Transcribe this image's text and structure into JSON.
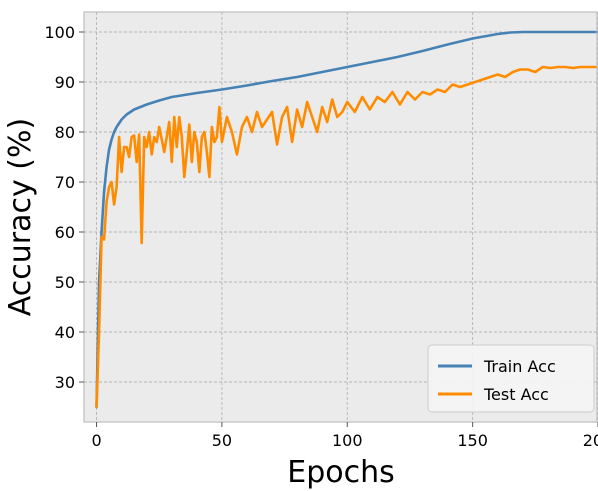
{
  "chart_data": {
    "type": "line",
    "xlabel": "Epochs",
    "ylabel": "Accuracy (%)",
    "xlim": [
      -5,
      200
    ],
    "ylim": [
      22,
      104
    ],
    "xticks": [
      0,
      50,
      100,
      150,
      200
    ],
    "yticks": [
      30,
      40,
      50,
      60,
      70,
      80,
      90,
      100
    ],
    "grid": true,
    "legend_position": "lower-right",
    "series": [
      {
        "name": "Train Acc",
        "color": "#4682b4",
        "x": [
          0,
          1,
          2,
          3,
          4,
          5,
          6,
          7,
          8,
          10,
          12,
          15,
          20,
          25,
          30,
          40,
          50,
          60,
          70,
          80,
          90,
          100,
          110,
          120,
          130,
          140,
          150,
          160,
          165,
          170,
          180,
          190,
          200
        ],
        "y": [
          25,
          50,
          60,
          68,
          73,
          76.5,
          78.5,
          80,
          81,
          82.5,
          83.5,
          84.5,
          85.5,
          86.3,
          87,
          87.8,
          88.5,
          89.3,
          90.2,
          91,
          92,
          93,
          94,
          95,
          96.2,
          97.5,
          98.7,
          99.6,
          99.9,
          100,
          100,
          100,
          100
        ]
      },
      {
        "name": "Test Acc",
        "color": "#ff8c00",
        "x": [
          0,
          1,
          2,
          3,
          4,
          5,
          6,
          7,
          8,
          9,
          10,
          11,
          12,
          13,
          14,
          15,
          16,
          17,
          18,
          19,
          20,
          21,
          22,
          23,
          24,
          25,
          26,
          27,
          28,
          29,
          30,
          31,
          32,
          33,
          34,
          35,
          36,
          37,
          38,
          39,
          40,
          41,
          42,
          43,
          44,
          45,
          46,
          47,
          48,
          49,
          50,
          52,
          54,
          56,
          58,
          60,
          62,
          64,
          66,
          68,
          70,
          72,
          74,
          76,
          78,
          80,
          82,
          84,
          86,
          88,
          90,
          92,
          94,
          96,
          98,
          100,
          103,
          106,
          109,
          112,
          115,
          118,
          121,
          124,
          127,
          130,
          133,
          136,
          139,
          142,
          145,
          148,
          151,
          154,
          157,
          160,
          163,
          166,
          169,
          172,
          175,
          178,
          181,
          184,
          187,
          190,
          193,
          196,
          199
        ],
        "y": [
          25,
          40,
          59,
          58.5,
          66,
          69,
          70,
          65.5,
          69,
          79,
          72,
          77,
          77,
          75,
          79,
          79.3,
          74,
          79.5,
          57.8,
          79,
          77,
          80,
          75.5,
          79,
          78,
          81,
          78.5,
          76,
          79,
          82,
          74,
          83,
          77,
          83,
          79,
          71,
          76,
          81.5,
          74,
          80,
          78,
          72,
          79,
          80,
          76,
          71,
          81,
          78,
          79,
          85,
          78,
          83,
          80,
          75.5,
          81,
          83,
          80,
          84,
          81,
          82.5,
          84,
          77.5,
          83,
          85,
          78,
          84.5,
          81,
          86,
          83,
          80,
          85,
          82,
          86.5,
          83,
          84,
          86,
          84,
          87,
          84.5,
          87,
          86,
          88,
          85.5,
          88,
          86.5,
          88,
          87.5,
          88.5,
          88,
          89.5,
          89,
          89.5,
          90,
          90.5,
          91,
          91.5,
          91,
          92,
          92.5,
          92.5,
          92,
          93,
          92.8,
          93,
          93,
          92.8,
          93,
          93,
          93
        ]
      }
    ]
  }
}
